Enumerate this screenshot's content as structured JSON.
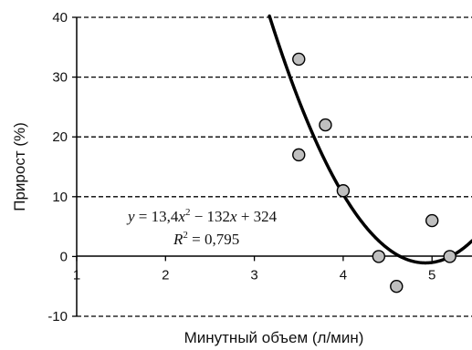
{
  "chart_data": {
    "type": "scatter",
    "xlabel": "Минутный объем (л/мин)",
    "ylabel": "Прирост (%)",
    "xlim": [
      1,
      5.45
    ],
    "ylim": [
      -10,
      40
    ],
    "x_ticks": [
      "1",
      "2",
      "3",
      "4",
      "5"
    ],
    "y_ticks": [
      "-10",
      "0",
      "10",
      "20",
      "30",
      "40"
    ],
    "grid": "horizontal-dashed",
    "series": [
      {
        "type": "scatter",
        "points": [
          {
            "x": 3.5,
            "y": 33
          },
          {
            "x": 3.5,
            "y": 17
          },
          {
            "x": 3.8,
            "y": 22
          },
          {
            "x": 4.0,
            "y": 11
          },
          {
            "x": 4.4,
            "y": 0
          },
          {
            "x": 4.6,
            "y": -5
          },
          {
            "x": 5.0,
            "y": 6
          },
          {
            "x": 5.2,
            "y": 0
          }
        ]
      },
      {
        "type": "line",
        "fit": "quadratic",
        "coefficients": [
          13.4,
          -132,
          324
        ]
      }
    ],
    "annotations": {
      "equation": {
        "y": "y",
        "eq1": " = 13,4",
        "x1": "x",
        "sup1": "2",
        "mid": " − 132",
        "x2": "x",
        "tail": " + 324"
      },
      "r2": {
        "R": "R",
        "sup": "2",
        "value": " = 0,795"
      }
    }
  }
}
